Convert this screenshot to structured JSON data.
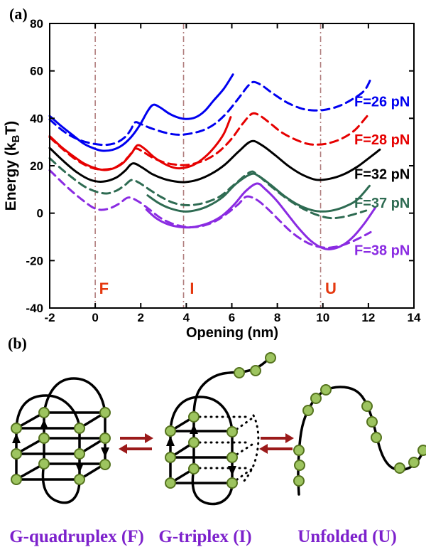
{
  "panel_a": {
    "label": "(a)",
    "chart_data": {
      "type": "line",
      "title": "",
      "xlabel": "Opening (nm)",
      "ylabel_parts": [
        "Energy (k",
        "B",
        "T)"
      ],
      "xlim": [
        -2,
        14
      ],
      "ylim": [
        -40,
        80
      ],
      "xticks": [
        -2,
        0,
        2,
        4,
        6,
        8,
        10,
        12,
        14
      ],
      "yticks": [
        80,
        60,
        40,
        20,
        0,
        -20,
        -40
      ],
      "grid": false,
      "legend_position": "right-inline-labels",
      "colors": {
        "blue": "#0000f0",
        "red": "#e60000",
        "black": "#000000",
        "green": "#2e6b52",
        "purple": "#8a2be2",
        "state_line": "#b07d7d",
        "state_label": "#e5380f"
      },
      "state_lines": [
        {
          "x": 0,
          "label": "F",
          "label_x": 0.38,
          "label_y": -34
        },
        {
          "x": 3.88,
          "label": "I",
          "label_x": 4.25,
          "label_y": -34
        },
        {
          "x": 9.9,
          "label": "U",
          "label_x": 10.35,
          "label_y": -34
        }
      ],
      "curve_labels": [
        {
          "text": "F=26 pN",
          "color": "#0000f0",
          "x": 11.38,
          "y": 45
        },
        {
          "text": "F=28 pN",
          "color": "#e60000",
          "x": 11.38,
          "y": 29
        },
        {
          "text": "F=32 pN",
          "color": "#000000",
          "x": 11.38,
          "y": 14.5
        },
        {
          "text": "F=37 pN",
          "color": "#2e6b52",
          "x": 11.38,
          "y": 2.3
        },
        {
          "text": "F=38 pN",
          "color": "#8a2be2",
          "x": 11.38,
          "y": -17.7
        }
      ],
      "series": [
        {
          "id": "f26-solid",
          "force": "F=26 pN",
          "style": "solid",
          "color": "#0000f0",
          "points": [
            [
              -2,
              41
            ],
            [
              -1.5,
              36.8
            ],
            [
              -1,
              33
            ],
            [
              -0.5,
              29.3
            ],
            [
              0,
              27.1
            ],
            [
              0.35,
              26.3
            ],
            [
              0.75,
              26.7
            ],
            [
              1.15,
              28.4
            ],
            [
              1.55,
              31.8
            ],
            [
              1.95,
              37
            ],
            [
              2.3,
              43
            ],
            [
              2.55,
              45.7
            ],
            [
              2.85,
              44.6
            ],
            [
              3.25,
              42
            ],
            [
              3.65,
              40.3
            ],
            [
              4,
              39.7
            ],
            [
              4.4,
              40.4
            ],
            [
              4.8,
              43
            ],
            [
              5.2,
              47.5
            ],
            [
              5.65,
              52.5
            ],
            [
              6.05,
              58.5
            ]
          ]
        },
        {
          "id": "f26-dashed",
          "force": "F=26 pN",
          "style": "dashed",
          "color": "#0000f0",
          "points": [
            [
              -2,
              39.5
            ],
            [
              -1.4,
              34.6
            ],
            [
              -0.8,
              31.3
            ],
            [
              -0.2,
              29.5
            ],
            [
              0.4,
              28.8
            ],
            [
              0.9,
              29.6
            ],
            [
              1.3,
              32
            ],
            [
              1.55,
              35
            ],
            [
              1.75,
              38.3
            ],
            [
              2,
              37.6
            ],
            [
              2.4,
              36
            ],
            [
              2.9,
              34.4
            ],
            [
              3.4,
              33.3
            ],
            [
              3.8,
              33.1
            ],
            [
              4.3,
              33.8
            ],
            [
              4.8,
              35.2
            ],
            [
              5.3,
              38
            ],
            [
              5.8,
              42.5
            ],
            [
              6.3,
              48.5
            ],
            [
              6.7,
              53.5
            ],
            [
              6.95,
              55.3
            ],
            [
              7.3,
              54
            ],
            [
              7.8,
              50.5
            ],
            [
              8.4,
              46.8
            ],
            [
              9,
              44.3
            ],
            [
              9.5,
              43.4
            ],
            [
              10,
              43.5
            ],
            [
              10.6,
              44.8
            ],
            [
              11.2,
              47.5
            ],
            [
              11.8,
              51.5
            ],
            [
              12.1,
              56.5
            ]
          ]
        },
        {
          "id": "f28-solid",
          "force": "F=28 pN",
          "style": "solid",
          "color": "#e60000",
          "points": [
            [
              -2,
              32.5
            ],
            [
              -1.5,
              28
            ],
            [
              -1,
              24.3
            ],
            [
              -0.5,
              21
            ],
            [
              0,
              19
            ],
            [
              0.4,
              18.2
            ],
            [
              0.8,
              18.9
            ],
            [
              1.2,
              21
            ],
            [
              1.6,
              25.3
            ],
            [
              1.85,
              28.6
            ],
            [
              2.15,
              27.3
            ],
            [
              2.6,
              23.5
            ],
            [
              3.1,
              20.5
            ],
            [
              3.55,
              19
            ],
            [
              3.95,
              19.2
            ],
            [
              4.35,
              20.5
            ],
            [
              4.8,
              23.5
            ],
            [
              5.25,
              28
            ],
            [
              5.65,
              33.5
            ],
            [
              5.95,
              40.5
            ]
          ]
        },
        {
          "id": "f28-dashed",
          "force": "F=28 pN",
          "style": "dashed",
          "color": "#e60000",
          "points": [
            [
              -2,
              32
            ],
            [
              -1.4,
              26.8
            ],
            [
              -0.8,
              22.3
            ],
            [
              -0.2,
              19.3
            ],
            [
              0.3,
              18.4
            ],
            [
              0.8,
              19
            ],
            [
              1.2,
              21.3
            ],
            [
              1.5,
              24.3
            ],
            [
              1.75,
              27.2
            ],
            [
              2.05,
              26.2
            ],
            [
              2.5,
              23.5
            ],
            [
              3,
              21.5
            ],
            [
              3.5,
              20.5
            ],
            [
              4,
              20.3
            ],
            [
              4.5,
              21.3
            ],
            [
              5,
              23.2
            ],
            [
              5.5,
              26.5
            ],
            [
              6,
              31.5
            ],
            [
              6.5,
              38
            ],
            [
              6.9,
              42
            ],
            [
              7.25,
              41
            ],
            [
              7.7,
              37.8
            ],
            [
              8.2,
              34
            ],
            [
              8.8,
              31
            ],
            [
              9.3,
              29.3
            ],
            [
              9.7,
              28.9
            ],
            [
              10.2,
              29.4
            ],
            [
              10.8,
              31.3
            ],
            [
              11.4,
              35
            ],
            [
              11.95,
              41
            ]
          ]
        },
        {
          "id": "f32-solid",
          "force": "F=32 pN",
          "style": "solid",
          "color": "#000000",
          "points": [
            [
              -2,
              27.5
            ],
            [
              -1.4,
              22
            ],
            [
              -0.8,
              17.2
            ],
            [
              -0.2,
              14
            ],
            [
              0.35,
              13.3
            ],
            [
              0.9,
              14.9
            ],
            [
              1.3,
              17.8
            ],
            [
              1.65,
              21
            ],
            [
              2.05,
              19.3
            ],
            [
              2.5,
              16.5
            ],
            [
              3,
              14.5
            ],
            [
              3.5,
              13.4
            ],
            [
              3.95,
              13.1
            ],
            [
              4.5,
              14.1
            ],
            [
              5.1,
              16.6
            ],
            [
              5.7,
              20.5
            ],
            [
              6.3,
              26
            ],
            [
              6.85,
              30.3
            ],
            [
              7.3,
              28.8
            ],
            [
              7.9,
              24.5
            ],
            [
              8.5,
              19.8
            ],
            [
              9.1,
              16.2
            ],
            [
              9.7,
              14.1
            ],
            [
              10.3,
              14.5
            ],
            [
              10.9,
              16.3
            ],
            [
              11.5,
              19.5
            ],
            [
              12.1,
              23.8
            ],
            [
              12.5,
              26.8
            ]
          ]
        },
        {
          "id": "f37-solid",
          "force": "F=37 pN",
          "style": "solid",
          "color": "#2e6b52",
          "points": [
            [
              2.3,
              7.5
            ],
            [
              2.8,
              4.2
            ],
            [
              3.3,
              2
            ],
            [
              3.9,
              0.7
            ],
            [
              4.45,
              1.3
            ],
            [
              5,
              3.2
            ],
            [
              5.6,
              6.8
            ],
            [
              6.2,
              12.5
            ],
            [
              6.85,
              16.5
            ],
            [
              7.2,
              15.5
            ],
            [
              7.7,
              12
            ],
            [
              8.3,
              7.3
            ],
            [
              8.9,
              3.6
            ],
            [
              9.5,
              1.3
            ],
            [
              10,
              0.7
            ],
            [
              10.5,
              1.3
            ],
            [
              11,
              2.9
            ],
            [
              11.5,
              5.6
            ],
            [
              12.05,
              11.5
            ]
          ]
        },
        {
          "id": "f37-dashed",
          "force": "F=37 pN",
          "style": "dashed",
          "color": "#2e6b52",
          "points": [
            [
              -2,
              23.2
            ],
            [
              -1.5,
              18.8
            ],
            [
              -1,
              14.9
            ],
            [
              -0.5,
              11.4
            ],
            [
              0,
              9.2
            ],
            [
              0.5,
              8.3
            ],
            [
              0.95,
              9.6
            ],
            [
              1.3,
              11.8
            ],
            [
              1.6,
              14
            ],
            [
              1.95,
              12.7
            ],
            [
              2.4,
              9.8
            ],
            [
              2.9,
              6.8
            ],
            [
              3.4,
              4.5
            ],
            [
              3.9,
              3.4
            ],
            [
              4.4,
              3.6
            ],
            [
              4.9,
              4.7
            ],
            [
              5.5,
              7.2
            ],
            [
              6.1,
              12
            ],
            [
              6.8,
              17.3
            ],
            [
              7.1,
              16.3
            ],
            [
              7.6,
              12.3
            ],
            [
              8.2,
              7.7
            ],
            [
              8.8,
              3.7
            ],
            [
              9.4,
              0.6
            ],
            [
              10,
              -1.5
            ],
            [
              10.45,
              -2.1
            ],
            [
              11,
              -1.4
            ],
            [
              11.5,
              -0.1
            ],
            [
              11.9,
              1.1
            ]
          ]
        },
        {
          "id": "f38-solid",
          "force": "F=38 pN",
          "style": "solid",
          "color": "#8a2be2",
          "points": [
            [
              2.25,
              1.5
            ],
            [
              2.7,
              -2.3
            ],
            [
              3.2,
              -4.7
            ],
            [
              3.7,
              -5.8
            ],
            [
              4.15,
              -6
            ],
            [
              4.6,
              -5.3
            ],
            [
              5.1,
              -3.7
            ],
            [
              5.6,
              -0.9
            ],
            [
              6.1,
              3.6
            ],
            [
              6.6,
              9.2
            ],
            [
              7.1,
              12.5
            ],
            [
              7.45,
              10.3
            ],
            [
              7.95,
              5.5
            ],
            [
              8.45,
              -0.5
            ],
            [
              8.95,
              -6.5
            ],
            [
              9.45,
              -11.5
            ],
            [
              9.95,
              -14.6
            ],
            [
              10.35,
              -15.2
            ],
            [
              10.85,
              -13.6
            ],
            [
              11.35,
              -9.8
            ],
            [
              11.85,
              -4
            ],
            [
              12.3,
              2.3
            ]
          ]
        },
        {
          "id": "f38-dashed",
          "force": "F=38 pN",
          "style": "dashed",
          "color": "#8a2be2",
          "points": [
            [
              -2,
              18.1
            ],
            [
              -1.5,
              13.4
            ],
            [
              -1,
              9
            ],
            [
              -0.5,
              5.1
            ],
            [
              -0.1,
              2.4
            ],
            [
              0.25,
              1.4
            ],
            [
              0.65,
              2.1
            ],
            [
              1.05,
              4
            ],
            [
              1.45,
              6.6
            ],
            [
              1.85,
              5.2
            ],
            [
              2.35,
              1.8
            ],
            [
              2.85,
              -1.9
            ],
            [
              3.35,
              -4.3
            ],
            [
              3.85,
              -5.6
            ],
            [
              4.35,
              -5.9
            ],
            [
              4.85,
              -5
            ],
            [
              5.35,
              -3
            ],
            [
              5.85,
              0.3
            ],
            [
              6.3,
              3.9
            ],
            [
              6.65,
              7
            ],
            [
              7.1,
              5.6
            ],
            [
              7.6,
              1.6
            ],
            [
              8.1,
              -3.2
            ],
            [
              8.6,
              -7.8
            ],
            [
              9.1,
              -11.3
            ],
            [
              9.6,
              -13.6
            ],
            [
              10.15,
              -14.6
            ],
            [
              10.7,
              -13.9
            ],
            [
              11.2,
              -12.3
            ],
            [
              11.65,
              -10.3
            ],
            [
              12.1,
              -8
            ]
          ]
        }
      ]
    }
  },
  "panel_b": {
    "label": "(b)",
    "captions": [
      {
        "text": "G-quadruplex (F)",
        "color": "#7d21cc"
      },
      {
        "text": "G-triplex (I)",
        "color": "#7d21cc"
      },
      {
        "text": "Unfolded (U)",
        "color": "#7d21cc"
      }
    ],
    "structures": [
      "g-quadruplex",
      "g-triplex",
      "unfolded-strand"
    ],
    "equilibrium_arrow_color": "#9b1a1a",
    "node_fill": "#9dc45f",
    "node_stroke": "#55731f"
  }
}
